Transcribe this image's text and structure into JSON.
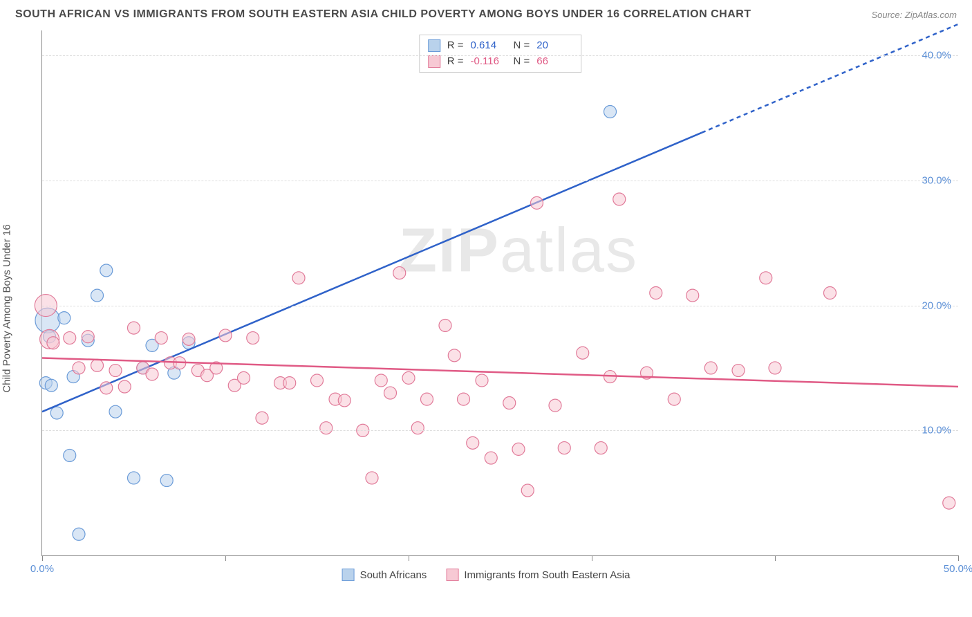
{
  "title": "SOUTH AFRICAN VS IMMIGRANTS FROM SOUTH EASTERN ASIA CHILD POVERTY AMONG BOYS UNDER 16 CORRELATION CHART",
  "source": "Source: ZipAtlas.com",
  "y_axis_label": "Child Poverty Among Boys Under 16",
  "watermark": "ZIPatlas",
  "chart": {
    "type": "scatter",
    "xlim": [
      0,
      50
    ],
    "ylim": [
      0,
      42
    ],
    "x_ticks": [
      0,
      10,
      20,
      30,
      40,
      50
    ],
    "x_tick_labels": [
      "0.0%",
      "",
      "",
      "",
      "",
      "50.0%"
    ],
    "y_ticks": [
      10,
      20,
      30,
      40
    ],
    "y_tick_labels": [
      "10.0%",
      "20.0%",
      "30.0%",
      "40.0%"
    ],
    "y_tick_color": "#5b8fd6",
    "x_tick_label_color_first": "#5b8fd6",
    "x_tick_label_color_last": "#5b8fd6",
    "grid_color": "#dddddd",
    "background_color": "#ffffff",
    "marker_radius": 9,
    "marker_radius_large": 16,
    "series": [
      {
        "name": "South Africans",
        "fill": "#b9d2ec",
        "stroke": "#6a9bd8",
        "fill_opacity": 0.55,
        "trend": {
          "m": 0.62,
          "b": 11.5,
          "solid_until_x": 36,
          "dash_after": true,
          "color": "#2f62c9",
          "width": 2.5
        },
        "stats": {
          "R": "0.614",
          "N": "20",
          "R_color": "#2f62c9",
          "N_color": "#2f62c9"
        },
        "points": [
          {
            "x": 0.3,
            "y": 18.8,
            "r": 18
          },
          {
            "x": 0.4,
            "y": 17.5
          },
          {
            "x": 0.2,
            "y": 13.8
          },
          {
            "x": 0.5,
            "y": 13.6
          },
          {
            "x": 0.8,
            "y": 11.4
          },
          {
            "x": 1.2,
            "y": 19.0
          },
          {
            "x": 1.5,
            "y": 8.0
          },
          {
            "x": 1.7,
            "y": 14.3
          },
          {
            "x": 2.0,
            "y": 1.7
          },
          {
            "x": 2.5,
            "y": 17.2
          },
          {
            "x": 3.0,
            "y": 20.8
          },
          {
            "x": 3.5,
            "y": 22.8
          },
          {
            "x": 4.0,
            "y": 11.5
          },
          {
            "x": 5.0,
            "y": 6.2
          },
          {
            "x": 5.5,
            "y": 15.0
          },
          {
            "x": 6.0,
            "y": 16.8
          },
          {
            "x": 6.8,
            "y": 6.0
          },
          {
            "x": 7.2,
            "y": 14.6
          },
          {
            "x": 8.0,
            "y": 17.0
          },
          {
            "x": 31.0,
            "y": 35.5
          }
        ]
      },
      {
        "name": "Immigrants from South Eastern Asia",
        "fill": "#f7c9d4",
        "stroke": "#e17a99",
        "fill_opacity": 0.55,
        "trend": {
          "m": -0.046,
          "b": 15.8,
          "solid_until_x": 50,
          "dash_after": false,
          "color": "#e05a85",
          "width": 2.5
        },
        "stats": {
          "R": "-0.116",
          "N": "66",
          "R_color": "#e05a85",
          "N_color": "#e05a85"
        },
        "points": [
          {
            "x": 0.2,
            "y": 20.0,
            "r": 16
          },
          {
            "x": 0.4,
            "y": 17.3,
            "r": 14
          },
          {
            "x": 0.6,
            "y": 17.0
          },
          {
            "x": 1.5,
            "y": 17.4
          },
          {
            "x": 2.0,
            "y": 15.0
          },
          {
            "x": 2.5,
            "y": 17.5
          },
          {
            "x": 3.0,
            "y": 15.2
          },
          {
            "x": 3.5,
            "y": 13.4
          },
          {
            "x": 4.0,
            "y": 14.8
          },
          {
            "x": 4.5,
            "y": 13.5
          },
          {
            "x": 5.0,
            "y": 18.2
          },
          {
            "x": 5.5,
            "y": 15.0
          },
          {
            "x": 6.0,
            "y": 14.5
          },
          {
            "x": 6.5,
            "y": 17.4
          },
          {
            "x": 7.0,
            "y": 15.4
          },
          {
            "x": 7.5,
            "y": 15.4
          },
          {
            "x": 8.0,
            "y": 17.3
          },
          {
            "x": 8.5,
            "y": 14.8
          },
          {
            "x": 9.0,
            "y": 14.4
          },
          {
            "x": 9.5,
            "y": 15.0
          },
          {
            "x": 10.0,
            "y": 17.6
          },
          {
            "x": 10.5,
            "y": 13.6
          },
          {
            "x": 11.0,
            "y": 14.2
          },
          {
            "x": 11.5,
            "y": 17.4
          },
          {
            "x": 12.0,
            "y": 11.0
          },
          {
            "x": 13.0,
            "y": 13.8
          },
          {
            "x": 13.5,
            "y": 13.8
          },
          {
            "x": 14.0,
            "y": 22.2
          },
          {
            "x": 15.0,
            "y": 14.0
          },
          {
            "x": 15.5,
            "y": 10.2
          },
          {
            "x": 16.0,
            "y": 12.5
          },
          {
            "x": 16.5,
            "y": 12.4
          },
          {
            "x": 17.5,
            "y": 10.0
          },
          {
            "x": 18.0,
            "y": 6.2
          },
          {
            "x": 18.5,
            "y": 14.0
          },
          {
            "x": 19.0,
            "y": 13.0
          },
          {
            "x": 19.5,
            "y": 22.6
          },
          {
            "x": 20.0,
            "y": 14.2
          },
          {
            "x": 20.5,
            "y": 10.2
          },
          {
            "x": 21.0,
            "y": 12.5
          },
          {
            "x": 22.0,
            "y": 18.4
          },
          {
            "x": 22.5,
            "y": 16.0
          },
          {
            "x": 23.0,
            "y": 12.5
          },
          {
            "x": 23.5,
            "y": 9.0
          },
          {
            "x": 24.0,
            "y": 14.0
          },
          {
            "x": 24.5,
            "y": 7.8
          },
          {
            "x": 25.5,
            "y": 12.2
          },
          {
            "x": 26.0,
            "y": 8.5
          },
          {
            "x": 26.5,
            "y": 5.2
          },
          {
            "x": 27.0,
            "y": 28.2
          },
          {
            "x": 28.0,
            "y": 12.0
          },
          {
            "x": 28.5,
            "y": 8.6
          },
          {
            "x": 29.5,
            "y": 16.2
          },
          {
            "x": 30.5,
            "y": 8.6
          },
          {
            "x": 31.0,
            "y": 14.3
          },
          {
            "x": 31.5,
            "y": 28.5
          },
          {
            "x": 33.0,
            "y": 14.6
          },
          {
            "x": 33.5,
            "y": 21.0
          },
          {
            "x": 34.5,
            "y": 12.5
          },
          {
            "x": 35.5,
            "y": 20.8
          },
          {
            "x": 36.5,
            "y": 15.0
          },
          {
            "x": 38.0,
            "y": 14.8
          },
          {
            "x": 39.5,
            "y": 22.2
          },
          {
            "x": 40.0,
            "y": 15.0
          },
          {
            "x": 43.0,
            "y": 21.0
          },
          {
            "x": 49.5,
            "y": 4.2
          }
        ]
      }
    ]
  },
  "legend": {
    "series1_label": "South Africans",
    "series2_label": "Immigrants from South Eastern Asia"
  },
  "stats_box": {
    "r_label": "R  =",
    "n_label": "N  ="
  }
}
